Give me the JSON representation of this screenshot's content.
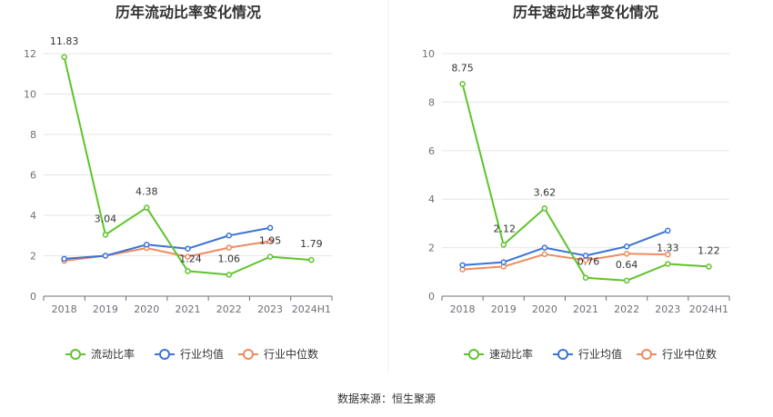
{
  "source_text": "数据来源：恒生聚源",
  "colors": {
    "primary": "#5ec42b",
    "industry_avg": "#3b73d6",
    "industry_median": "#f08a5d",
    "grid": "#e6e6e6",
    "axis": "#6e7079"
  },
  "chart_data": [
    {
      "type": "line",
      "title": "历年流动比率变化情况",
      "categories": [
        "2018",
        "2019",
        "2020",
        "2021",
        "2022",
        "2023",
        "2024H1"
      ],
      "ylim": [
        0,
        12
      ],
      "yticks": [
        0,
        2,
        4,
        6,
        8,
        10,
        12
      ],
      "grid": true,
      "legend_position": "bottom",
      "series": [
        {
          "name": "流动比率",
          "color": "#5ec42b",
          "values": [
            11.83,
            3.04,
            4.38,
            1.24,
            1.06,
            1.95,
            1.79
          ],
          "labels": [
            "11.83",
            "3.04",
            "4.38",
            "1.24",
            "1.06",
            "1.95",
            "1.79"
          ]
        },
        {
          "name": "行业均值",
          "color": "#3b73d6",
          "values": [
            1.85,
            2.0,
            2.55,
            2.35,
            3.0,
            3.38,
            null
          ]
        },
        {
          "name": "行业中位数",
          "color": "#f08a5d",
          "values": [
            1.75,
            2.0,
            2.38,
            1.95,
            2.4,
            2.72,
            null
          ]
        }
      ]
    },
    {
      "type": "line",
      "title": "历年速动比率变化情况",
      "categories": [
        "2018",
        "2019",
        "2020",
        "2021",
        "2022",
        "2023",
        "2024H1"
      ],
      "ylim": [
        0,
        10
      ],
      "yticks": [
        0,
        2,
        4,
        6,
        8,
        10
      ],
      "grid": true,
      "legend_position": "bottom",
      "series": [
        {
          "name": "速动比率",
          "color": "#5ec42b",
          "values": [
            8.75,
            2.12,
            3.62,
            0.76,
            0.64,
            1.33,
            1.22
          ],
          "labels": [
            "8.75",
            "2.12",
            "3.62",
            "0.76",
            "0.64",
            "1.33",
            "1.22"
          ]
        },
        {
          "name": "行业均值",
          "color": "#3b73d6",
          "values": [
            1.28,
            1.4,
            2.0,
            1.67,
            2.05,
            2.7,
            null
          ]
        },
        {
          "name": "行业中位数",
          "color": "#f08a5d",
          "values": [
            1.1,
            1.22,
            1.73,
            1.48,
            1.75,
            1.72,
            null
          ]
        }
      ]
    }
  ]
}
